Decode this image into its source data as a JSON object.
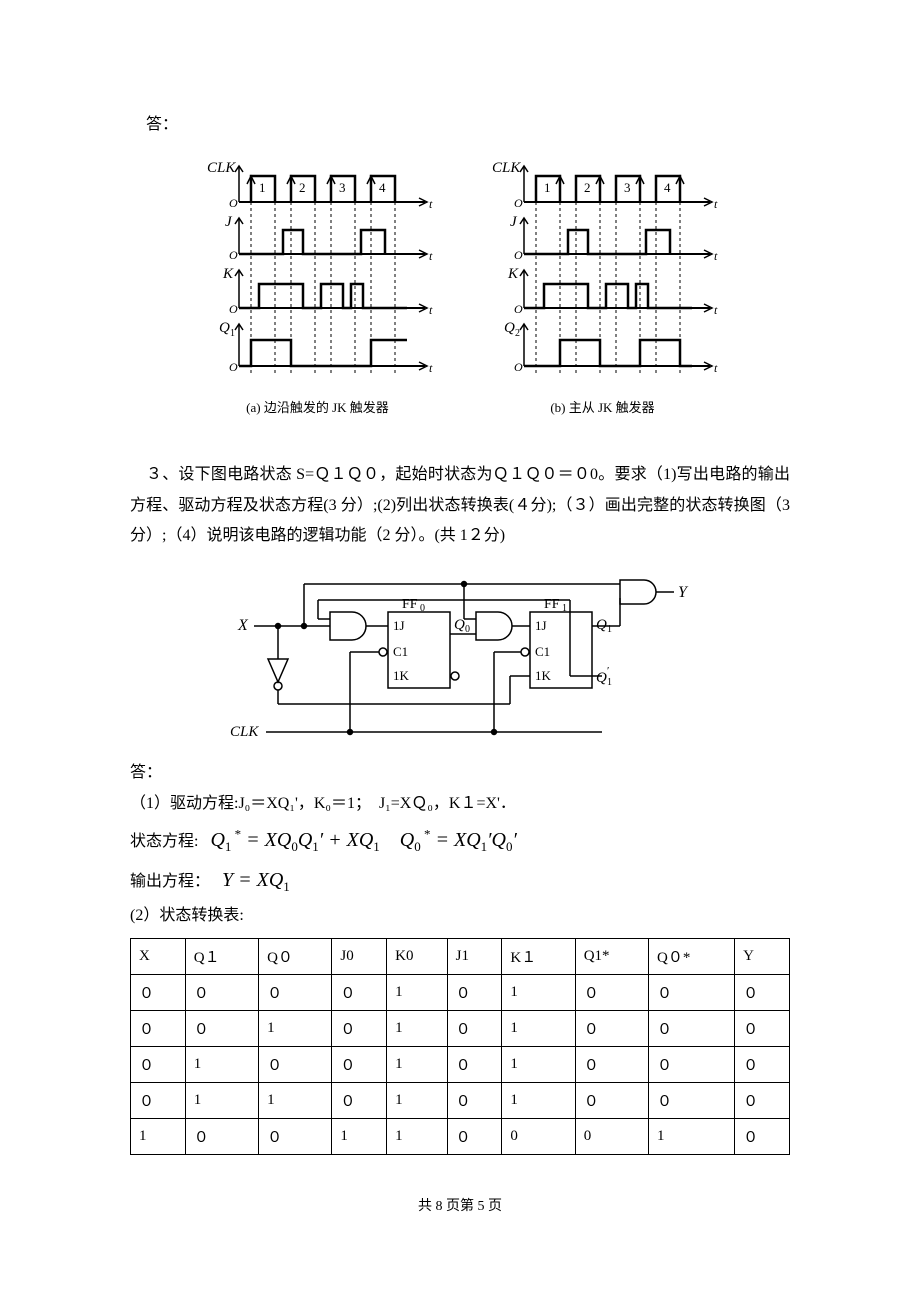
{
  "answer_label": "答：",
  "timing": {
    "left": {
      "signals": [
        "CLK",
        "J",
        "K",
        "Q"
      ],
      "q_label": "Q₁",
      "clk_numbers": [
        "1",
        "2",
        "3",
        "4"
      ],
      "caption": "(a) 边沿触发的 JK 触发器"
    },
    "right": {
      "signals": [
        "CLK",
        "J",
        "K",
        "Q"
      ],
      "q_label": "Q₂",
      "clk_numbers": [
        "1",
        "2",
        "3",
        "4"
      ],
      "caption": "(b) 主从 JK 触发器"
    },
    "colors": {
      "stroke": "#000000",
      "bg": "#ffffff"
    },
    "axis_origin": "O"
  },
  "question3_text": "３、设下图电路状态 S=Ｑ１Ｑ０，起始时状态为Ｑ１Ｑ０＝０0。要求（1)写出电路的输出方程、驱动方程及状态方程(3 分）;(2)列出状态转换表(４分);（３）画出完整的状态转换图（3 分）;（4）说明该电路的逻辑功能（2 分）。(共 1２分)",
  "circuit": {
    "inputs": [
      "X",
      "CLK"
    ],
    "output": "Y",
    "ff": [
      {
        "name": "FF₀",
        "j": "1J",
        "c": "C1",
        "k": "1K",
        "out": "Q₀"
      },
      {
        "name": "FF₁",
        "j": "1J",
        "c": "C1",
        "k": "1K",
        "out": "Q₁",
        "outb": "Q₁′"
      }
    ]
  },
  "answer3": {
    "part1_label": "（1）驱动方程:J₀＝XQ₁'，K₀＝1；　J₁=XＱ₀，K１=X'．",
    "state_eq_label": "状态方程:",
    "state_eq_q1": "Q₁* = XQ₀Q₁′ + XQ₁",
    "state_eq_q0": "Q₀* = XQ₁′Q₀′",
    "output_eq_label": "输出方程：",
    "output_eq": "Y = XQ₁",
    "part2_label": "(2）状态转换表:"
  },
  "table": {
    "columns": [
      "X",
      "Q１",
      "Q０",
      "J0",
      "K0",
      "J1",
      "K１",
      "Q1*",
      "Q０*",
      "Y"
    ],
    "rows": [
      [
        "０",
        "０",
        "０",
        "０",
        "1",
        "０",
        "1",
        "０",
        "０",
        "０"
      ],
      [
        "０",
        "０",
        "1",
        "０",
        "1",
        "０",
        "1",
        "０",
        "０",
        "０"
      ],
      [
        "０",
        "1",
        "０",
        "０",
        "1",
        "０",
        "1",
        "０",
        "０",
        "０"
      ],
      [
        "０",
        "1",
        "1",
        "０",
        "1",
        "０",
        "1",
        "０",
        "０",
        "０"
      ],
      [
        "1",
        "０",
        "０",
        "1",
        "1",
        "０",
        "0",
        "0",
        "1",
        "０"
      ]
    ]
  },
  "footer": "共 8 页第 5 页"
}
